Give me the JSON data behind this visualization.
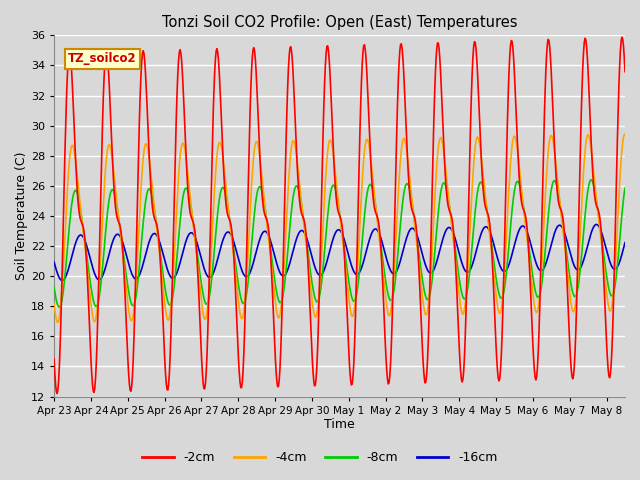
{
  "title": "Tonzi Soil CO2 Profile: Open (East) Temperatures",
  "xlabel": "Time",
  "ylabel": "Soil Temperature (C)",
  "ylim": [
    12,
    36
  ],
  "yticks": [
    12,
    14,
    16,
    18,
    20,
    22,
    24,
    26,
    28,
    30,
    32,
    34,
    36
  ],
  "colors": {
    "-2cm": "#ff0000",
    "-4cm": "#ffa500",
    "-8cm": "#00cc00",
    "-16cm": "#0000cc"
  },
  "legend_label": "TZ_soilco2",
  "legend_box_facecolor": "#ffffcc",
  "legend_box_edgecolor": "#cc8800",
  "x_tick_labels": [
    "Apr 23",
    "Apr 24",
    "Apr 25",
    "Apr 26",
    "Apr 27",
    "Apr 28",
    "Apr 29",
    "Apr 30",
    "May 1",
    "May 2",
    "May 3",
    "May 4",
    "May 5",
    "May 6",
    "May 7",
    "May 8"
  ],
  "background_color": "#d8d8d8",
  "plot_bg_color": "#d8d8d8",
  "grid_color": "#ffffff",
  "n_days": 15.5,
  "depth_params": {
    "-2cm": {
      "base": 23.5,
      "amp": 9.0,
      "phase_shift": 0.0,
      "trend": 0.07,
      "skew": 0.45
    },
    "-4cm": {
      "base": 22.8,
      "amp": 5.5,
      "phase_shift": 0.3,
      "trend": 0.05,
      "skew": 0.2
    },
    "-8cm": {
      "base": 21.8,
      "amp": 3.8,
      "phase_shift": 0.7,
      "trend": 0.05,
      "skew": 0.1
    },
    "-16cm": {
      "base": 21.2,
      "amp": 1.5,
      "phase_shift": 1.4,
      "trend": 0.05,
      "skew": 0.0
    }
  }
}
